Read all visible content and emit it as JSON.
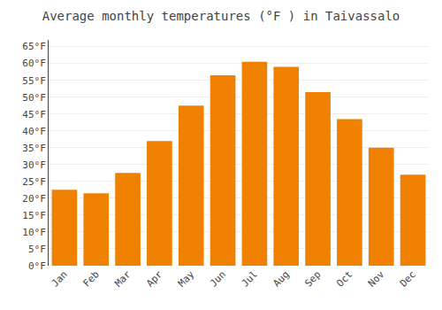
{
  "chart_data": {
    "type": "bar",
    "title": "Average monthly temperatures (°F ) in Taivassalo",
    "categories": [
      "Jan",
      "Feb",
      "Mar",
      "Apr",
      "May",
      "Jun",
      "Jul",
      "Aug",
      "Sep",
      "Oct",
      "Nov",
      "Dec"
    ],
    "values": [
      22.5,
      21.5,
      27.5,
      37.0,
      47.5,
      56.5,
      60.5,
      59.0,
      51.5,
      43.5,
      35.0,
      27.0
    ],
    "color": "#F08000",
    "ylim": [
      0,
      67
    ],
    "yticks": [
      {
        "value": 0,
        "label": "0°F"
      },
      {
        "value": 5,
        "label": "5°F"
      },
      {
        "value": 10,
        "label": "10°F"
      },
      {
        "value": 15,
        "label": "15°F"
      },
      {
        "value": 20,
        "label": "20°F"
      },
      {
        "value": 25,
        "label": "25°F"
      },
      {
        "value": 30,
        "label": "30°F"
      },
      {
        "value": 35,
        "label": "35°F"
      },
      {
        "value": 40,
        "label": "40°F"
      },
      {
        "value": 45,
        "label": "45°F"
      },
      {
        "value": 50,
        "label": "50°F"
      },
      {
        "value": 55,
        "label": "55°F"
      },
      {
        "value": 60,
        "label": "60°F"
      },
      {
        "value": 65,
        "label": "65°F"
      }
    ],
    "grid": true
  }
}
